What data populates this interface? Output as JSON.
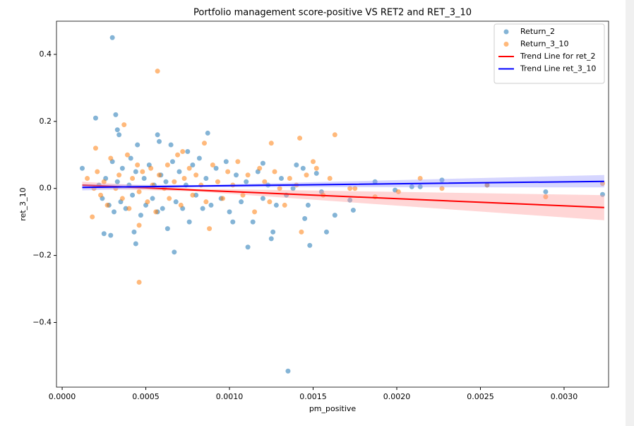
{
  "chart_data": {
    "type": "scatter",
    "title": "Portfolio management score-positive VS RET2 and RET_3_10",
    "xlabel": "pm_positive",
    "ylabel": "ret_3_10",
    "xlim": [
      -3.4e-05,
      0.003266
    ],
    "ylim": [
      -0.593,
      0.499
    ],
    "xticks": [
      {
        "value": 0,
        "label": "0.0000"
      },
      {
        "value": 0.0005,
        "label": "0.0005"
      },
      {
        "value": 0.001,
        "label": "0.0010"
      },
      {
        "value": 0.0015,
        "label": "0.0015"
      },
      {
        "value": 0.002,
        "label": "0.0020"
      },
      {
        "value": 0.0025,
        "label": "0.0025"
      },
      {
        "value": 0.003,
        "label": "0.0030"
      }
    ],
    "yticks": [
      {
        "value": -0.4,
        "label": "−0.4"
      },
      {
        "value": -0.2,
        "label": "−0.2"
      },
      {
        "value": 0,
        "label": "0.0"
      },
      {
        "value": 0.2,
        "label": "0.2"
      },
      {
        "value": 0.4,
        "label": "0.4"
      }
    ],
    "grid": false,
    "legend": "upper right",
    "series": [
      {
        "name": "Return_2",
        "type": "scatter",
        "color": "#1f77b4",
        "x": [
          0.0003,
          0.0002,
          0.00032,
          0.00033,
          0.00034,
          0.00135,
          0.00067,
          0.00044,
          0.00111,
          0.00148,
          0.00289,
          0.00323,
          0.00254,
          0.00227,
          0.00214,
          0.00187,
          0.00174,
          0.00163,
          0.00158,
          0.00172,
          0.00199,
          0.00209,
          0.00012,
          0.00025,
          0.00029,
          0.00057,
          0.00058,
          0.00087,
          0.00065,
          0.00045,
          0.00075,
          0.00125,
          0.00126,
          0.00102,
          0.0012,
          0.0014,
          0.00152,
          0.00145,
          0.00022,
          0.00024,
          0.00026,
          0.00028,
          0.0003,
          0.00031,
          0.00033,
          0.00035,
          0.00036,
          0.00038,
          0.0004,
          0.00041,
          0.00042,
          0.00043,
          0.00044,
          0.00047,
          0.00049,
          0.0005,
          0.00052,
          0.00054,
          0.00055,
          0.00057,
          0.00059,
          0.0006,
          0.00062,
          0.00063,
          0.00066,
          0.00068,
          0.0007,
          0.00072,
          0.00074,
          0.00076,
          0.00078,
          0.0008,
          0.00082,
          0.00084,
          0.00086,
          0.00089,
          0.00092,
          0.00095,
          0.00098,
          0.001,
          0.00104,
          0.00107,
          0.0011,
          0.00114,
          0.00117,
          0.0012,
          0.00123,
          0.00128,
          0.00131,
          0.00134,
          0.00138,
          0.00144,
          0.00147,
          0.00155
        ],
        "values": [
          0.45,
          0.21,
          0.22,
          0.175,
          0.16,
          -0.545,
          -0.19,
          -0.165,
          -0.175,
          -0.17,
          -0.01,
          -0.018,
          0.01,
          0.025,
          0.005,
          0.02,
          -0.065,
          -0.08,
          -0.13,
          -0.035,
          -0.005,
          0.005,
          0.06,
          -0.135,
          -0.14,
          0.16,
          0.14,
          0.165,
          0.13,
          0.13,
          0.11,
          -0.15,
          -0.13,
          -0.1,
          0.075,
          0.07,
          0.045,
          -0.09,
          0.01,
          -0.03,
          0.03,
          -0.05,
          0.08,
          -0.07,
          0.02,
          -0.04,
          0.06,
          -0.06,
          0.01,
          0.09,
          -0.02,
          -0.13,
          0.05,
          -0.08,
          0.03,
          -0.05,
          0.07,
          -0.03,
          0.01,
          -0.07,
          0.04,
          -0.06,
          0.02,
          -0.12,
          0.08,
          -0.04,
          0.05,
          -0.06,
          0.01,
          -0.1,
          0.07,
          -0.02,
          0.09,
          -0.06,
          0.03,
          -0.05,
          0.06,
          -0.03,
          0.08,
          -0.07,
          0.04,
          -0.04,
          0.02,
          -0.1,
          0.05,
          -0.03,
          0.01,
          -0.05,
          0.03,
          -0.02,
          0,
          0.06,
          -0.05,
          -0.01
        ]
      },
      {
        "name": "Return_3_10",
        "type": "scatter",
        "color": "#ff7f0e",
        "x": [
          0.00057,
          0.00046,
          0.00037,
          0.0002,
          0.00163,
          0.00142,
          0.00125,
          0.00323,
          0.00289,
          0.00254,
          0.00227,
          0.00214,
          0.00201,
          0.00187,
          0.00172,
          0.00175,
          0.00143,
          0.00088,
          0.00046,
          0.00018,
          0.00085,
          0.00072,
          0.0015,
          0.00152,
          0.00015,
          0.00019,
          0.00021,
          0.00023,
          0.00025,
          0.00027,
          0.00029,
          0.00032,
          0.00034,
          0.00036,
          0.00039,
          0.0004,
          0.00042,
          0.00045,
          0.00046,
          0.00048,
          0.00051,
          0.00053,
          0.00054,
          0.00056,
          0.00058,
          0.00061,
          0.00063,
          0.00064,
          0.00067,
          0.00069,
          0.00071,
          0.00073,
          0.00076,
          0.00078,
          0.0008,
          0.00083,
          0.00086,
          0.0009,
          0.00093,
          0.00096,
          0.00099,
          0.00102,
          0.00105,
          0.00108,
          0.00111,
          0.00115,
          0.00118,
          0.00121,
          0.00124,
          0.00127,
          0.0013,
          0.00133,
          0.00136,
          0.0014,
          0.00146,
          0.00156,
          0.0016
        ],
        "values": [
          0.35,
          -0.28,
          0.19,
          0.12,
          0.16,
          0.15,
          0.135,
          0.015,
          -0.025,
          0.01,
          0,
          0.03,
          -0.01,
          -0.025,
          0,
          0,
          -0.13,
          -0.12,
          -0.11,
          -0.085,
          0.135,
          0.11,
          0.08,
          0.06,
          0.03,
          0,
          0.05,
          -0.02,
          0.02,
          -0.05,
          0.09,
          0,
          0.04,
          -0.03,
          0.1,
          -0.06,
          0.03,
          0.07,
          -0.01,
          0.05,
          -0.04,
          0.06,
          0.01,
          -0.07,
          0.04,
          0,
          0.07,
          -0.03,
          0.02,
          0.1,
          -0.05,
          0.03,
          0.06,
          -0.02,
          0.04,
          0.01,
          -0.04,
          0.07,
          0.02,
          -0.03,
          0.05,
          0.01,
          0.08,
          -0.02,
          0.04,
          -0.07,
          0.06,
          0.02,
          -0.04,
          0.05,
          0,
          -0.05,
          0.03,
          0.01,
          0.04,
          -0.02,
          0.03
        ]
      },
      {
        "name": "Trend Line for ret_2",
        "type": "line",
        "color": "#ff0000",
        "band_color": "#ff9999",
        "x": [
          0.00012,
          0.0008,
          0.00324
        ],
        "values": [
          0.01,
          -0.005,
          -0.057
        ],
        "ci_lower": [
          0.0,
          -0.009,
          -0.095
        ],
        "ci_upper": [
          0.02,
          -0.001,
          -0.02
        ]
      },
      {
        "name": "Trend Line ret_3_10",
        "type": "line",
        "color": "#0000ff",
        "band_color": "#9999ff",
        "x": [
          0.00012,
          0.0008,
          0.00324
        ],
        "values": [
          0.003,
          0.007,
          0.021
        ],
        "ci_lower": [
          -0.006,
          0.004,
          0.003
        ],
        "ci_upper": [
          0.012,
          0.01,
          0.04
        ]
      }
    ]
  }
}
